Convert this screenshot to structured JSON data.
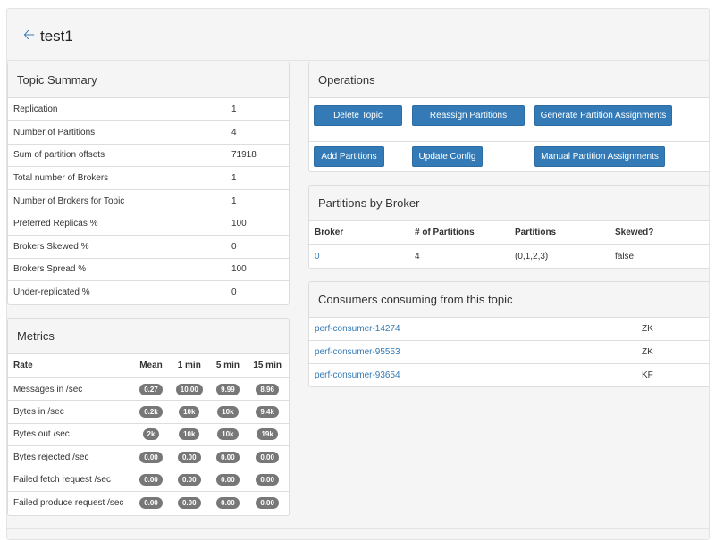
{
  "header": {
    "title": "test1"
  },
  "topic_summary": {
    "title": "Topic Summary",
    "rows": [
      {
        "label": "Replication",
        "value": "1"
      },
      {
        "label": "Number of Partitions",
        "value": "4"
      },
      {
        "label": "Sum of partition offsets",
        "value": "71918"
      },
      {
        "label": "Total number of Brokers",
        "value": "1"
      },
      {
        "label": "Number of Brokers for Topic",
        "value": "1"
      },
      {
        "label": "Preferred Replicas %",
        "value": "100"
      },
      {
        "label": "Brokers Skewed %",
        "value": "0"
      },
      {
        "label": "Brokers Spread %",
        "value": "100"
      },
      {
        "label": "Under-replicated %",
        "value": "0"
      }
    ]
  },
  "metrics": {
    "title": "Metrics",
    "headers": [
      "Rate",
      "Mean",
      "1 min",
      "5 min",
      "15 min"
    ],
    "rows": [
      {
        "label": "Messages in /sec",
        "values": [
          "0.27",
          "10.00",
          "9.99",
          "8.96"
        ]
      },
      {
        "label": "Bytes in /sec",
        "values": [
          "0.2k",
          "10k",
          "10k",
          "9.4k"
        ]
      },
      {
        "label": "Bytes out /sec",
        "values": [
          "2k",
          "10k",
          "10k",
          "19k"
        ]
      },
      {
        "label": "Bytes rejected /sec",
        "values": [
          "0.00",
          "0.00",
          "0.00",
          "0.00"
        ]
      },
      {
        "label": "Failed fetch request /sec",
        "values": [
          "0.00",
          "0.00",
          "0.00",
          "0.00"
        ]
      },
      {
        "label": "Failed produce request /sec",
        "values": [
          "0.00",
          "0.00",
          "0.00",
          "0.00"
        ]
      }
    ]
  },
  "operations": {
    "title": "Operations",
    "delete_topic": "Delete Topic",
    "reassign_partitions": "Reassign Partitions",
    "generate_assignments": "Generate Partition Assignments",
    "add_partitions": "Add Partitions",
    "update_config": "Update Config",
    "manual_assignments": "Manual Partition Assignments"
  },
  "partitions_by_broker": {
    "title": "Partitions by Broker",
    "headers": [
      "Broker",
      "# of Partitions",
      "Partitions",
      "Skewed?"
    ],
    "rows": [
      {
        "broker": "0",
        "count": "4",
        "partitions": "(0,1,2,3)",
        "skewed": "false"
      }
    ]
  },
  "consumers": {
    "title": "Consumers consuming from this topic",
    "rows": [
      {
        "name": "perf-consumer-14274",
        "type": "ZK"
      },
      {
        "name": "perf-consumer-95553",
        "type": "ZK"
      },
      {
        "name": "perf-consumer-93654",
        "type": "KF"
      }
    ]
  },
  "colors": {
    "primary": "#337ab7",
    "badge": "#777777"
  },
  "icons": {
    "back": "arrow-left-icon"
  }
}
